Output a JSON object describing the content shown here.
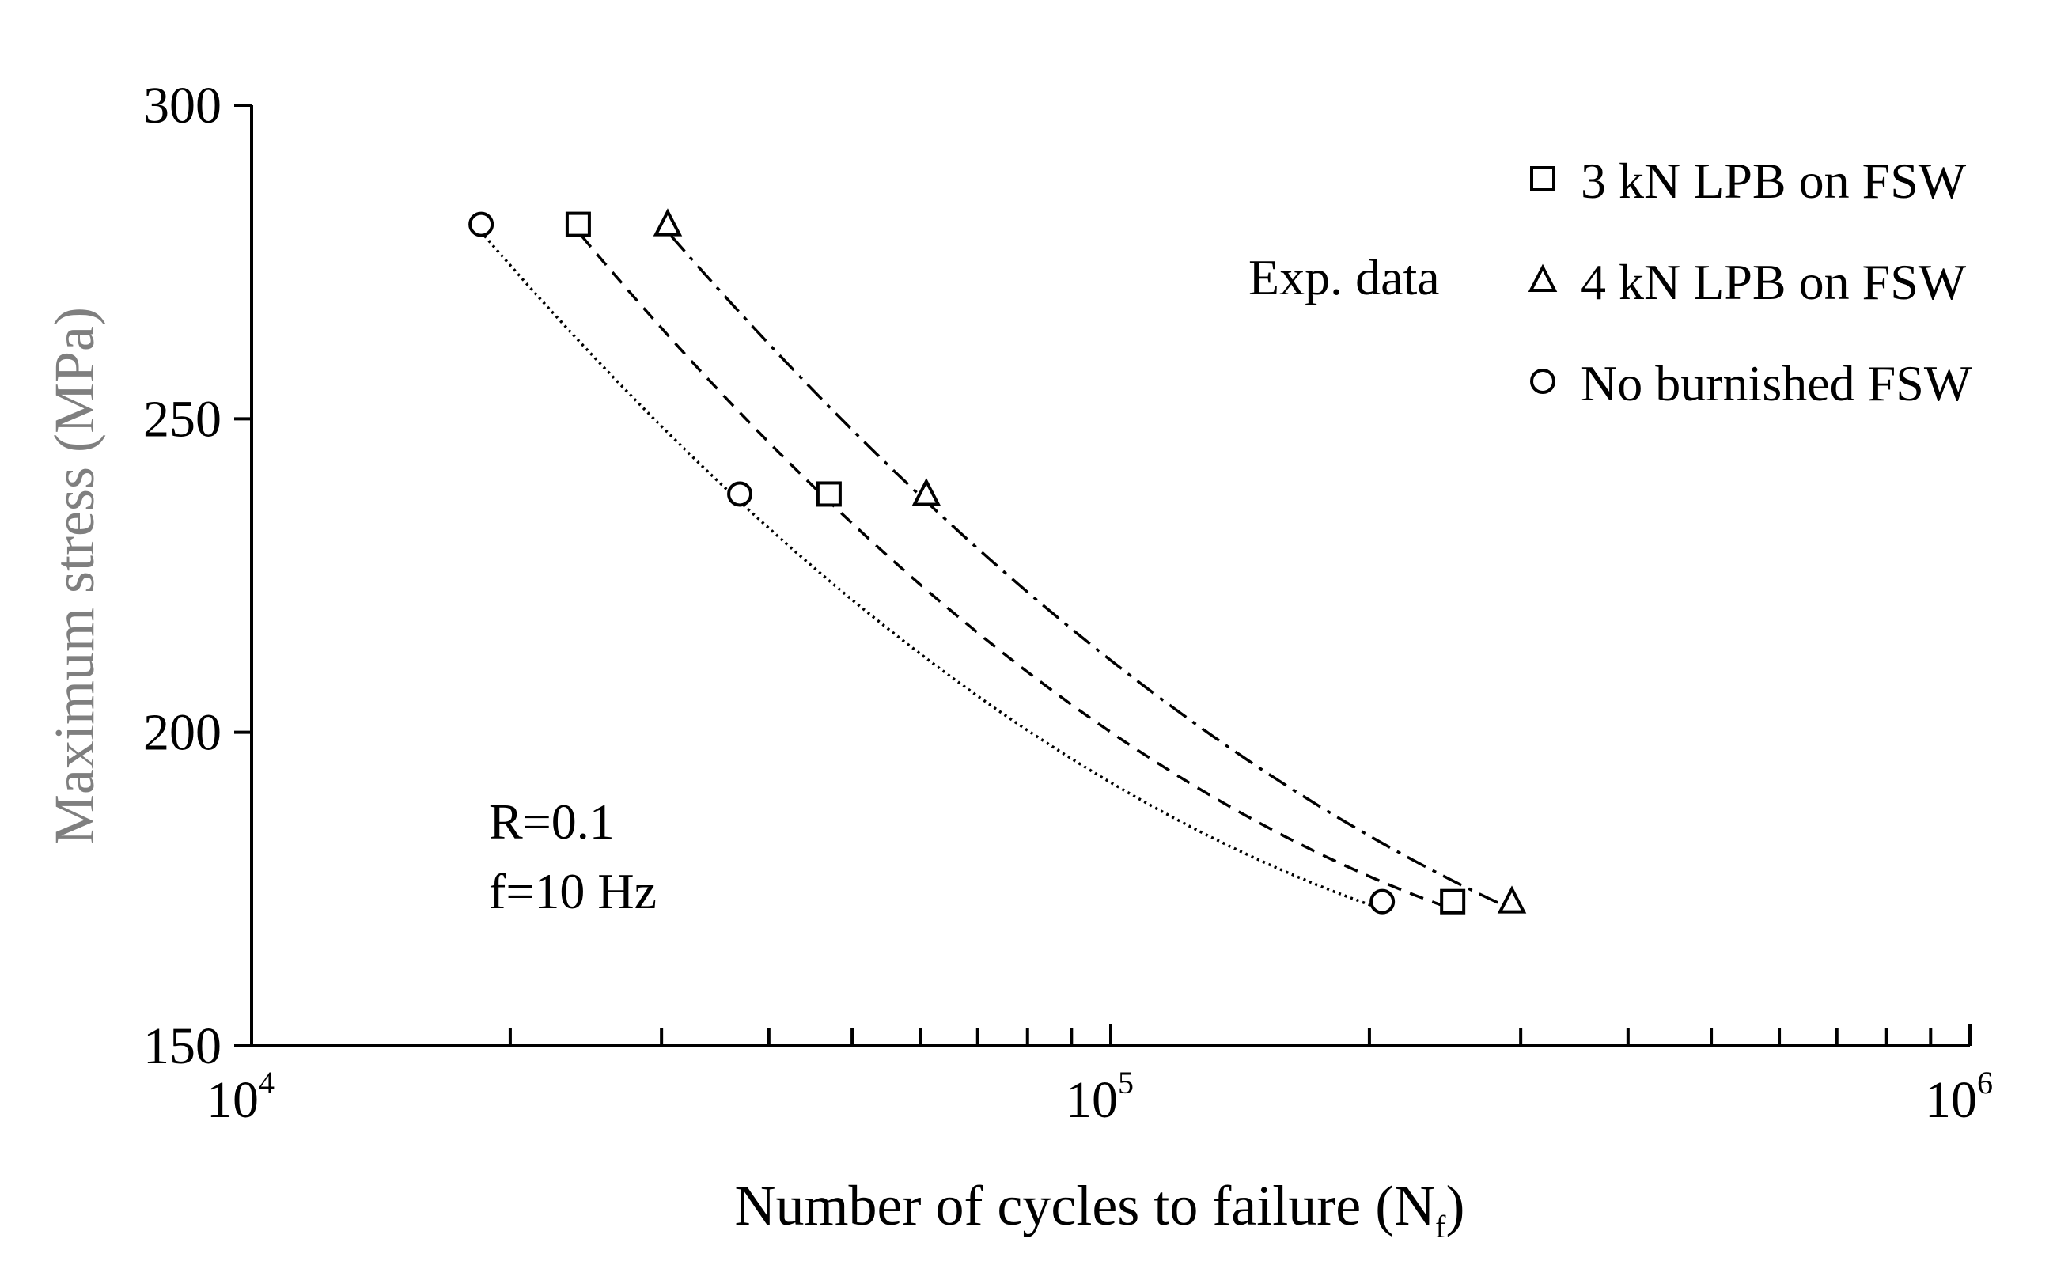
{
  "chart_data": {
    "type": "scatter",
    "xlabel": "Number of cycles to failure (N",
    "xlabel_sub": "f",
    "xlabel_end": ")",
    "ylabel": "Maximum stress (MPa)",
    "x_scale": "log",
    "xlim": [
      10000,
      1000000
    ],
    "ylim": [
      150,
      300
    ],
    "y_ticks": [
      150,
      200,
      250,
      300
    ],
    "x_tick_labels": [
      {
        "value": 10000,
        "base": "10",
        "exp": "4"
      },
      {
        "value": 100000,
        "base": "10",
        "exp": "5"
      },
      {
        "value": 1000000,
        "base": "10",
        "exp": "6"
      }
    ],
    "grid": false,
    "legend_title": "Exp. data",
    "legend_position": "top-right",
    "annotations": [
      "R=0.1",
      "f=10 Hz"
    ],
    "series": [
      {
        "name": "3 kN LPB on FSW",
        "marker": "square",
        "fit_line": "dashed",
        "points": [
          [
            24000,
            281
          ],
          [
            47000,
            238
          ],
          [
            250000,
            173
          ]
        ]
      },
      {
        "name": "4 kN LPB on FSW",
        "marker": "triangle",
        "fit_line": "dash-dot",
        "points": [
          [
            30500,
            281
          ],
          [
            61000,
            238
          ],
          [
            293000,
            173
          ]
        ]
      },
      {
        "name": "No burnished FSW",
        "marker": "circle",
        "fit_line": "dotted",
        "points": [
          [
            18500,
            281
          ],
          [
            37000,
            238
          ],
          [
            207000,
            173
          ]
        ]
      }
    ]
  }
}
